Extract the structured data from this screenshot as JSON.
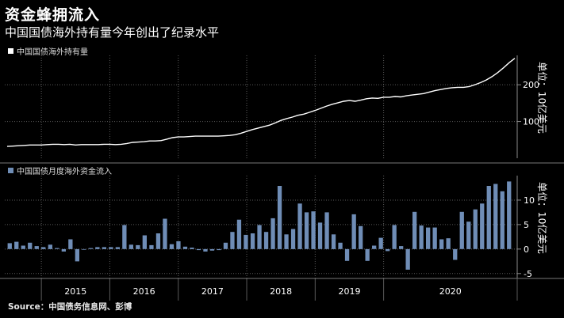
{
  "header": {
    "title": "资金蜂拥流入",
    "subtitle": "中国国债海外持有量今年创出了纪录水平"
  },
  "source": "Source：中国债务信息网、彭博",
  "colors": {
    "line": "#ffffff",
    "bar": "#6f8db6",
    "grid": "#5a5a5a",
    "axis": "#8c8c8c"
  },
  "chart_data": [
    {
      "type": "line",
      "legend": "中国国债海外持有量",
      "unit_label": "单位：10亿美元",
      "ylim": [
        0,
        280
      ],
      "yticks": [
        100,
        200
      ],
      "x_start": "2014-07",
      "x_end": "2020-09",
      "values": [
        32,
        33,
        34,
        35,
        36,
        36,
        36,
        37,
        38,
        38,
        37,
        38,
        36,
        37,
        37,
        37,
        37,
        38,
        38,
        37,
        38,
        40,
        43,
        44,
        45,
        47,
        47,
        48,
        52,
        56,
        58,
        58,
        59,
        60,
        60,
        60,
        60,
        60,
        61,
        62,
        64,
        68,
        73,
        78,
        82,
        86,
        90,
        96,
        103,
        108,
        112,
        117,
        120,
        125,
        130,
        136,
        142,
        147,
        151,
        155,
        157,
        155,
        158,
        162,
        164,
        163,
        166,
        166,
        168,
        167,
        170,
        172,
        174,
        176,
        180,
        184,
        187,
        190,
        192,
        193,
        193,
        195,
        200,
        206,
        213,
        222,
        233,
        246,
        260,
        272
      ]
    },
    {
      "type": "bar",
      "legend": "中国国债月度海外资金流入",
      "unit_label": "单位：10亿美元",
      "ylim": [
        -6,
        15
      ],
      "yticks": [
        -5,
        0,
        5,
        10
      ],
      "values": [
        1.2,
        1.5,
        0.7,
        1.3,
        0.6,
        0.4,
        0.9,
        0.2,
        -0.5,
        2.0,
        -2.5,
        -0.1,
        0.2,
        0.4,
        0.4,
        0.4,
        0.4,
        4.9,
        0.9,
        0.8,
        2.8,
        0.8,
        3.2,
        6.2,
        1.0,
        1.6,
        0.5,
        0.3,
        -0.2,
        -0.5,
        -0.3,
        -0.2,
        1.3,
        3.5,
        6.0,
        2.9,
        3.2,
        4.9,
        3.5,
        6.3,
        12.9,
        3.0,
        4.1,
        9.3,
        7.5,
        7.7,
        5.4,
        7.5,
        3.0,
        1.3,
        -2.4,
        7.1,
        4.7,
        -2.4,
        0.7,
        2.3,
        -0.4,
        4.9,
        0.6,
        -4.2,
        7.6,
        4.8,
        4.4,
        4.4,
        2.0,
        2.2,
        -2.2,
        7.6,
        5.6,
        8.1,
        9.3,
        12.9,
        13.3,
        11.8,
        13.8
      ]
    }
  ],
  "x_axis": {
    "years": [
      "2015",
      "2016",
      "2017",
      "2018",
      "2019",
      "2020"
    ]
  }
}
